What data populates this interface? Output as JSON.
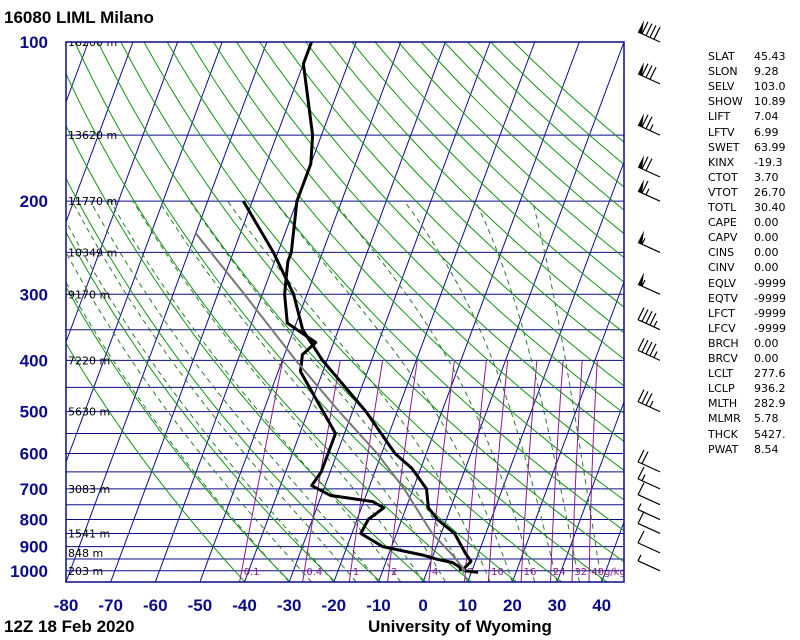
{
  "station_title": "16080 LIML Milano",
  "footer": {
    "time": "12Z 18 Feb 2020",
    "source": "University of Wyoming"
  },
  "indices": [
    {
      "k": "SLAT",
      "v": "45.43"
    },
    {
      "k": "SLON",
      "v": "9.28"
    },
    {
      "k": "SELV",
      "v": "103.0"
    },
    {
      "k": "SHOW",
      "v": "10.89"
    },
    {
      "k": "LIFT",
      "v": "7.04"
    },
    {
      "k": "LFTV",
      "v": "6.99"
    },
    {
      "k": "SWET",
      "v": "63.99"
    },
    {
      "k": "KINX",
      "v": "-19.3"
    },
    {
      "k": "CTOT",
      "v": "3.70"
    },
    {
      "k": "VTOT",
      "v": "26.70"
    },
    {
      "k": "TOTL",
      "v": "30.40"
    },
    {
      "k": "CAPE",
      "v": "0.00"
    },
    {
      "k": "CAPV",
      "v": "0.00"
    },
    {
      "k": "CINS",
      "v": "0.00"
    },
    {
      "k": "CINV",
      "v": "0.00"
    },
    {
      "k": "EQLV",
      "v": "-9999"
    },
    {
      "k": "EQTV",
      "v": "-9999"
    },
    {
      "k": "LFCT",
      "v": "-9999"
    },
    {
      "k": "LFCV",
      "v": "-9999"
    },
    {
      "k": "BRCH",
      "v": "0.00"
    },
    {
      "k": "BRCV",
      "v": "0.00"
    },
    {
      "k": "LCLT",
      "v": "277.6"
    },
    {
      "k": "LCLP",
      "v": "936.2"
    },
    {
      "k": "MLTH",
      "v": "282.9"
    },
    {
      "k": "MLMR",
      "v": "5.78"
    },
    {
      "k": "THCK",
      "v": "5427."
    },
    {
      "k": "PWAT",
      "v": "8.54"
    }
  ],
  "colors": {
    "grid": "#0b0b8a",
    "dry": "#139313",
    "moist": "#2a7a2a",
    "mixing": "#8b1a8b",
    "axis": "#0b0b8a",
    "profile": "#000000",
    "parcel": "#777777"
  },
  "chart_data": {
    "type": "line",
    "skew_t": true,
    "log_pressure_axis": true,
    "xlabel": "",
    "ylabel": "",
    "xlim": [
      -80,
      45
    ],
    "ylim": [
      1050,
      100
    ],
    "x_ticks": [
      -80,
      -70,
      -60,
      -50,
      -40,
      -30,
      -20,
      -10,
      0,
      10,
      20,
      30,
      40
    ],
    "y_ticks": [
      100,
      200,
      300,
      400,
      500,
      600,
      700,
      800,
      900,
      1000
    ],
    "height_labels": [
      {
        "p": 100,
        "t": "16200 m"
      },
      {
        "p": 150,
        "t": "13620 m"
      },
      {
        "p": 200,
        "t": "11770 m"
      },
      {
        "p": 250,
        "t": "10349 m"
      },
      {
        "p": 300,
        "t": "9170 m"
      },
      {
        "p": 400,
        "t": "7220 m"
      },
      {
        "p": 500,
        "t": "5630 m"
      },
      {
        "p": 700,
        "t": "3083 m"
      },
      {
        "p": 850,
        "t": "1541 m"
      },
      {
        "p": 925,
        "t": "848 m"
      },
      {
        "p": 1000,
        "t": "203 m"
      }
    ],
    "mixing_ratio_labels": [
      "0.1",
      "0.4",
      "1",
      "2",
      "4",
      "7",
      "10",
      "16",
      "24",
      "32",
      "40g/kg"
    ],
    "series": [
      {
        "values": [
          {
            "p": 1007,
            "t": 11.5
          },
          {
            "p": 1000,
            "t": 8.5
          },
          {
            "p": 990,
            "t": 8
          },
          {
            "p": 960,
            "t": 9
          },
          {
            "p": 925,
            "t": 7
          },
          {
            "p": 850,
            "t": 3
          },
          {
            "p": 800,
            "t": -2
          },
          {
            "p": 760,
            "t": -5
          },
          {
            "p": 700,
            "t": -7
          },
          {
            "p": 640,
            "t": -12
          },
          {
            "p": 600,
            "t": -17
          },
          {
            "p": 500,
            "t": -27
          },
          {
            "p": 400,
            "t": -41
          },
          {
            "p": 350,
            "t": -48
          },
          {
            "p": 300,
            "t": -53
          },
          {
            "p": 250,
            "t": -61
          },
          {
            "p": 200,
            "t": -72
          }
        ]
      },
      {
        "values": [
          {
            "p": 1000,
            "t": 7.5
          },
          {
            "p": 985,
            "t": 7
          },
          {
            "p": 965,
            "t": 5
          },
          {
            "p": 950,
            "t": 1
          },
          {
            "p": 935,
            "t": -2
          },
          {
            "p": 900,
            "t": -12
          },
          {
            "p": 850,
            "t": -18
          },
          {
            "p": 800,
            "t": -17.5
          },
          {
            "p": 760,
            "t": -15
          },
          {
            "p": 740,
            "t": -18
          },
          {
            "p": 720,
            "t": -28
          },
          {
            "p": 690,
            "t": -33
          },
          {
            "p": 650,
            "t": -32
          },
          {
            "p": 590,
            "t": -32
          },
          {
            "p": 550,
            "t": -32
          },
          {
            "p": 420,
            "t": -45
          },
          {
            "p": 390,
            "t": -46
          },
          {
            "p": 370,
            "t": -44
          },
          {
            "p": 340,
            "t": -52
          },
          {
            "p": 300,
            "t": -55
          },
          {
            "p": 280,
            "t": -56
          },
          {
            "p": 260,
            "t": -57
          },
          {
            "p": 250,
            "t": -57
          },
          {
            "p": 200,
            "t": -60
          },
          {
            "p": 190,
            "t": -60
          },
          {
            "p": 170,
            "t": -60
          },
          {
            "p": 150,
            "t": -62
          },
          {
            "p": 110,
            "t": -70
          },
          {
            "p": 100,
            "t": -70
          }
        ]
      },
      {
        "values": [
          {
            "p": 1000,
            "t": 8.5
          },
          {
            "p": 936,
            "t": 4.5
          },
          {
            "p": 850,
            "t": -2
          },
          {
            "p": 700,
            "t": -12
          },
          {
            "p": 600,
            "t": -21
          },
          {
            "p": 500,
            "t": -33
          },
          {
            "p": 400,
            "t": -47
          },
          {
            "p": 300,
            "t": -64
          },
          {
            "p": 250,
            "t": -75
          },
          {
            "p": 230,
            "t": -80
          }
        ]
      }
    ],
    "wind_barbs": [
      {
        "p": 1000,
        "speed": 5
      },
      {
        "p": 925,
        "speed": 10
      },
      {
        "p": 850,
        "speed": 10
      },
      {
        "p": 800,
        "speed": 5
      },
      {
        "p": 750,
        "speed": 10
      },
      {
        "p": 700,
        "speed": 15
      },
      {
        "p": 650,
        "speed": 20
      },
      {
        "p": 500,
        "speed": 35
      },
      {
        "p": 400,
        "speed": 45
      },
      {
        "p": 350,
        "speed": 45
      },
      {
        "p": 300,
        "speed": 55
      },
      {
        "p": 250,
        "speed": 55
      },
      {
        "p": 200,
        "speed": 65
      },
      {
        "p": 180,
        "speed": 70
      },
      {
        "p": 150,
        "speed": 75
      },
      {
        "p": 120,
        "speed": 80
      },
      {
        "p": 100,
        "speed": 90
      }
    ]
  }
}
